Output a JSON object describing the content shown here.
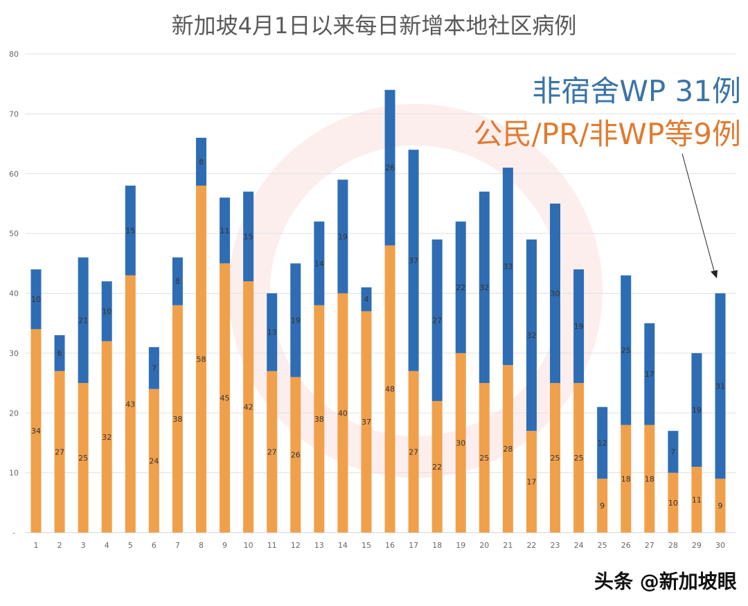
{
  "chart_data": {
    "type": "bar",
    "stacked": true,
    "title": "新加坡4月1日以来每日新增本地社区病例",
    "xlabel": "",
    "ylabel": "",
    "categories": [
      "1",
      "2",
      "3",
      "4",
      "5",
      "6",
      "7",
      "8",
      "9",
      "10",
      "11",
      "12",
      "13",
      "14",
      "15",
      "16",
      "17",
      "18",
      "19",
      "20",
      "21",
      "22",
      "23",
      "24",
      "25",
      "26",
      "27",
      "28",
      "29",
      "30"
    ],
    "series": [
      {
        "color": "#f0a04b",
        "values": [
          34,
          27,
          25,
          32,
          43,
          24,
          38,
          58,
          45,
          42,
          27,
          26,
          38,
          40,
          37,
          48,
          27,
          22,
          30,
          25,
          28,
          17,
          25,
          25,
          9,
          18,
          18,
          10,
          11,
          9
        ]
      },
      {
        "color": "#2e6db4",
        "values": [
          10,
          6,
          21,
          10,
          15,
          7,
          8,
          8,
          11,
          15,
          13,
          19,
          14,
          19,
          4,
          26,
          37,
          27,
          22,
          32,
          33,
          32,
          30,
          19,
          12,
          25,
          17,
          7,
          19,
          31
        ]
      }
    ],
    "ylim": [
      0,
      80
    ],
    "yticks": [
      "-",
      "10",
      "20",
      "30",
      "40",
      "50",
      "60",
      "70",
      "80"
    ],
    "grid": true,
    "annotations": [
      {
        "text": "非宿舍WP 31例",
        "color": "#3a74a8"
      },
      {
        "text": "公民/PR/非WP等9例",
        "color": "#e07b30"
      }
    ]
  },
  "watermark": "头条 @新加坡眼"
}
